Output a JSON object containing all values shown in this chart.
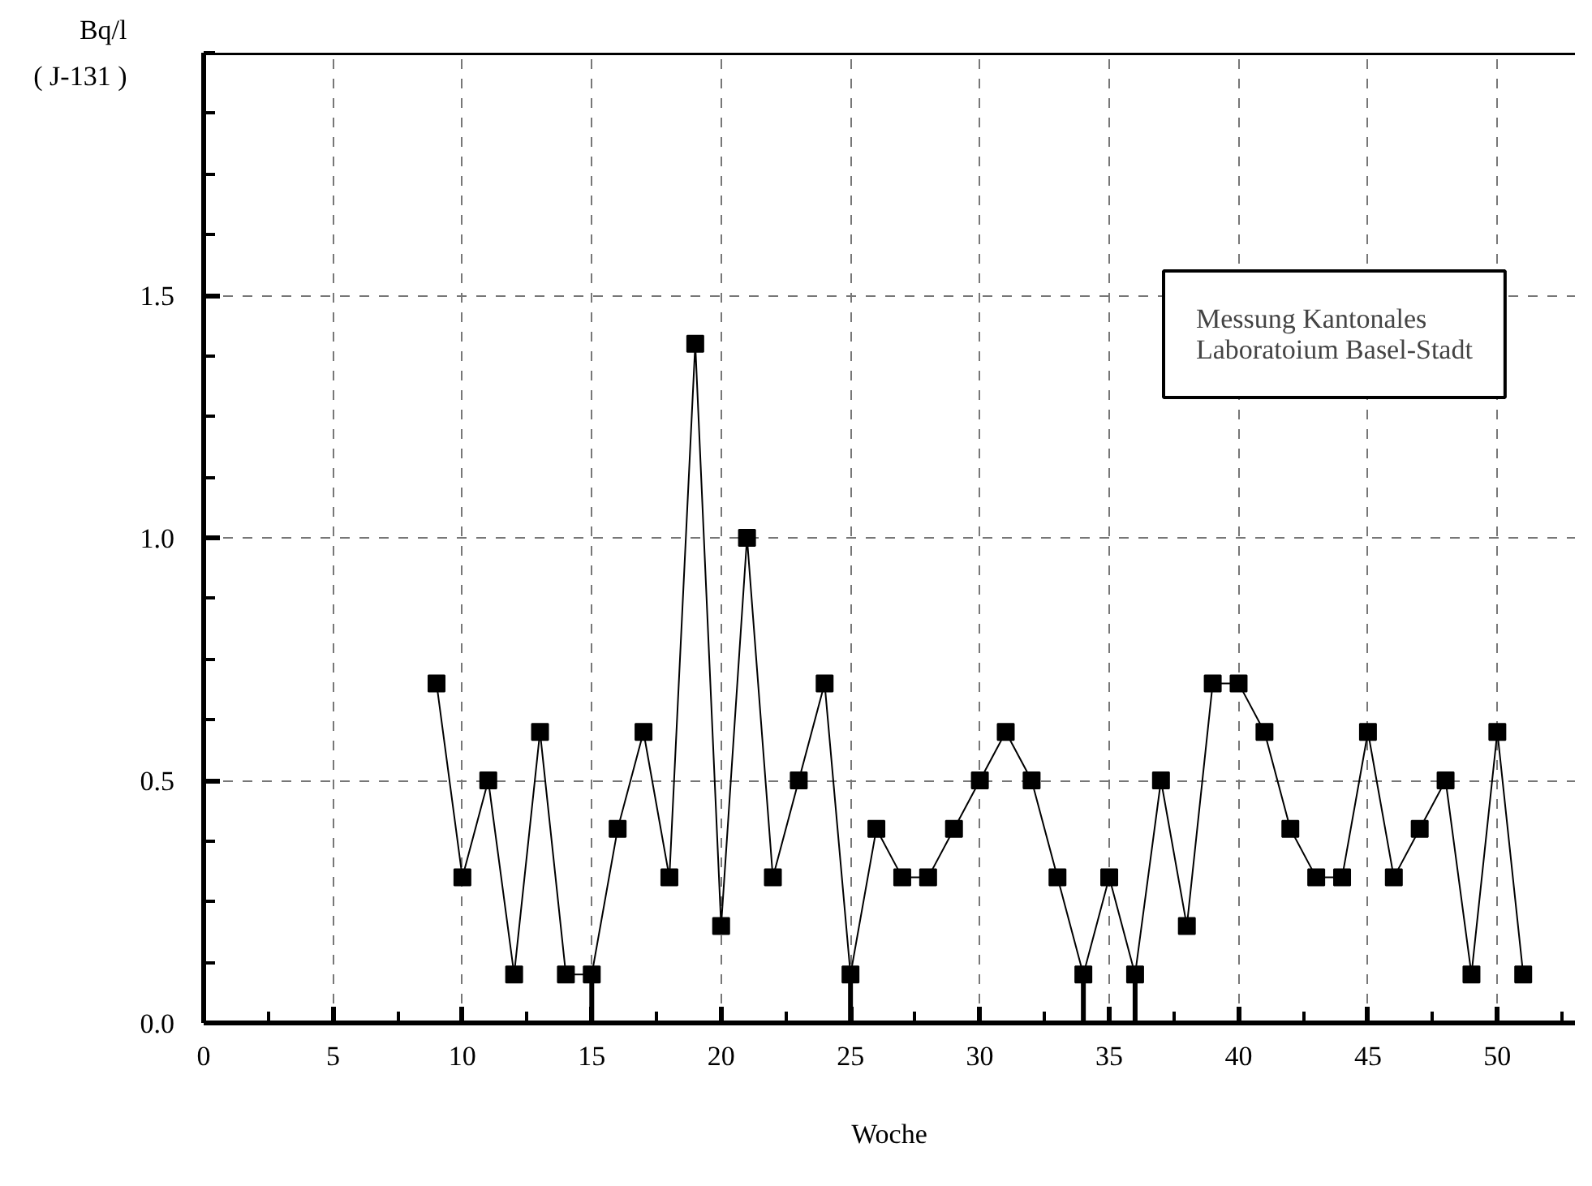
{
  "chart_data": {
    "type": "line",
    "xlabel": "Woche",
    "ylabel": "Bq/l\n( J-131 )",
    "x": [
      9,
      10,
      11,
      12,
      13,
      14,
      15,
      16,
      17,
      18,
      19,
      20,
      21,
      22,
      23,
      24,
      25,
      26,
      27,
      28,
      29,
      30,
      31,
      32,
      33,
      34,
      35,
      36,
      37,
      38,
      39,
      40,
      41,
      42,
      43,
      44,
      45,
      46,
      47,
      48,
      49,
      50,
      51
    ],
    "series": [
      {
        "color": "#000000",
        "values": [
          0.7,
          0.3,
          0.5,
          0.1,
          0.6,
          0.1,
          0.1,
          0.4,
          0.6,
          0.3,
          1.4,
          0.2,
          1.0,
          0.3,
          0.5,
          0.7,
          0.1,
          0.4,
          0.3,
          0.3,
          0.4,
          0.5,
          0.6,
          0.5,
          0.3,
          0.1,
          0.3,
          0.1,
          0.5,
          0.2,
          0.7,
          0.7,
          0.6,
          0.4,
          0.3,
          0.3,
          0.6,
          0.3,
          0.4,
          0.5,
          0.1,
          0.6,
          0.1
        ],
        "errors": [
          null,
          null,
          null,
          null,
          null,
          null,
          [
            0,
            0.1
          ],
          null,
          null,
          null,
          null,
          null,
          null,
          null,
          null,
          null,
          [
            0,
            0.1
          ],
          null,
          null,
          null,
          null,
          null,
          null,
          null,
          null,
          [
            0,
            0.1
          ],
          null,
          [
            0,
            0.1
          ],
          null,
          null,
          null,
          null,
          null,
          null,
          null,
          null,
          null,
          null,
          null,
          null,
          null,
          null,
          null
        ]
      }
    ],
    "xlim": [
      0,
      53
    ],
    "xticks": [
      0,
      5,
      10,
      15,
      20,
      25,
      30,
      35,
      40,
      45,
      50
    ],
    "ylim": [
      0,
      2.0
    ],
    "yticks": [
      {
        "value": 0,
        "label": "0.0"
      },
      0.5,
      {
        "value": 1,
        "label": "1.0"
      },
      1.5
    ],
    "grid": true,
    "marker": "square",
    "line_style": "solid",
    "annotations": [
      "Messung Kantonales\nLaboratoium Basel-Stadt"
    ]
  }
}
